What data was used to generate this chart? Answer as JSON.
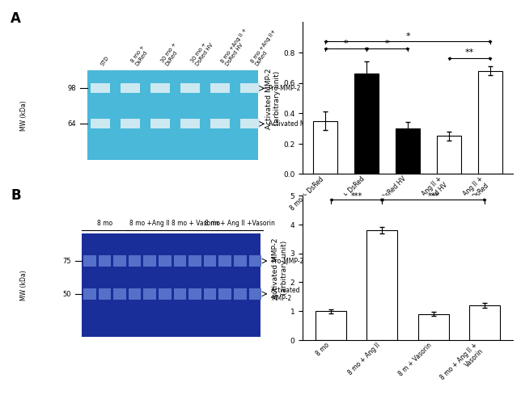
{
  "panel_A_bar": {
    "categories": [
      "8 mo + DsRed",
      "30 mo + DsRed",
      "30 + DsRed HV",
      "8 mo + Ang II +\nDsRed HV",
      "8 mo + Ang II +\nDsRed"
    ],
    "values": [
      0.35,
      0.66,
      0.3,
      0.25,
      0.68
    ],
    "errors": [
      0.06,
      0.08,
      0.04,
      0.03,
      0.03
    ],
    "colors": [
      "white",
      "black",
      "black",
      "white",
      "white"
    ],
    "ylabel": "Activated MMP-2\n(arbitrary unit)",
    "ylim": [
      0,
      0.9
    ],
    "yticks": [
      0.0,
      0.2,
      0.4,
      0.6,
      0.8
    ]
  },
  "panel_B_bar": {
    "categories": [
      "8 mo",
      "8 mo + Ang II",
      "8 m + Vasorin",
      "8 mo + Ang II +\nVasorin"
    ],
    "values": [
      1.0,
      3.8,
      0.9,
      1.2
    ],
    "errors": [
      0.07,
      0.12,
      0.07,
      0.08
    ],
    "colors": [
      "white",
      "white",
      "white",
      "white"
    ],
    "ylabel": "Activated MMP-2\n(arbitrary unit)",
    "ylim": [
      0,
      5
    ],
    "yticks": [
      0,
      1,
      2,
      3,
      4,
      5
    ]
  },
  "gel_A_bg": "#4ab8d8",
  "gel_A_band": "#cce8f0",
  "gel_B_bg": "#1a2e99",
  "gel_B_band": "#5570c8",
  "col_labels_a": [
    "STD",
    "8 mo +\nDsRed",
    "30 mo +\nDsRed",
    "30 mo +\nDsRed HV",
    "8 mo +Ang II +\nDsRed HV",
    "8 mo +Ang II+\nDsRed"
  ],
  "col_labels_b": [
    "8 mo",
    "8 mo +Ang II",
    "8 mo + Vasorin",
    "8 mo+ Ang II +Vasorin"
  ],
  "mw_a": [
    "98",
    "64"
  ],
  "mw_b": [
    "75",
    "50"
  ]
}
